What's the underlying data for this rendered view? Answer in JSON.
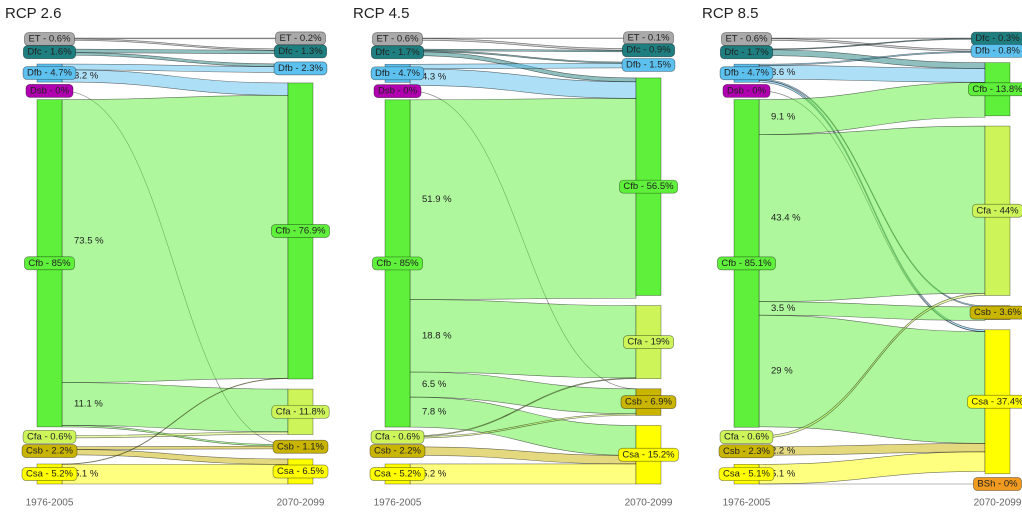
{
  "chart_data": [
    {
      "type": "sankey",
      "title": "RCP 2.6",
      "left_label": "1976-2005",
      "right_label": "2070-2099",
      "left_nodes": [
        {
          "label": "ET - 0.6%",
          "value": 0.6,
          "color": "#a9a9a9"
        },
        {
          "label": "Dfc - 1.6%",
          "value": 1.6,
          "color": "#1f7f80"
        },
        {
          "label": "Dfb - 4.7%",
          "value": 4.7,
          "color": "#5cc1ef"
        },
        {
          "label": "Dsb - 0%",
          "value": 0,
          "color": "#b000b0"
        },
        {
          "label": "Cfb - 85%",
          "value": 85,
          "color": "#5ef03a"
        },
        {
          "label": "Cfa - 0.6%",
          "value": 0.6,
          "color": "#cdf55a"
        },
        {
          "label": "Csb - 2.2%",
          "value": 2.2,
          "color": "#c9b400"
        },
        {
          "label": "Csa - 5.2%",
          "value": 5.2,
          "color": "#ffff00"
        }
      ],
      "right_nodes": [
        {
          "label": "ET - 0.2%",
          "value": 0.2,
          "color": "#a9a9a9"
        },
        {
          "label": "Dfc - 1.3%",
          "value": 1.3,
          "color": "#1f7f80"
        },
        {
          "label": "Dfb - 2.3%",
          "value": 2.3,
          "color": "#5cc1ef"
        },
        {
          "label": "Cfb - 76.9%",
          "value": 76.9,
          "color": "#5ef03a"
        },
        {
          "label": "Cfa - 11.8%",
          "value": 11.8,
          "color": "#cdf55a"
        },
        {
          "label": "Csb - 1.1%",
          "value": 1.1,
          "color": "#c9b400"
        },
        {
          "label": "Csa - 6.5%",
          "value": 6.5,
          "color": "#ffff00"
        }
      ],
      "links": [
        {
          "source": 0,
          "target": 0,
          "value": 0.2
        },
        {
          "source": 0,
          "target": 1,
          "value": 0.4
        },
        {
          "source": 1,
          "target": 1,
          "value": 0.9
        },
        {
          "source": 1,
          "target": 2,
          "value": 0.7
        },
        {
          "source": 2,
          "target": 2,
          "value": 1.5
        },
        {
          "source": 2,
          "target": 3,
          "value": 3.2,
          "label": "3.2 %"
        },
        {
          "source": 3,
          "target": 5,
          "value": 0
        },
        {
          "source": 4,
          "target": 3,
          "value": 73.5,
          "label": "73.5 %"
        },
        {
          "source": 4,
          "target": 4,
          "value": 11.1,
          "label": "11.1 %"
        },
        {
          "source": 4,
          "target": 5,
          "value": 0.4
        },
        {
          "source": 5,
          "target": 4,
          "value": 0.6
        },
        {
          "source": 6,
          "target": 5,
          "value": 0.7
        },
        {
          "source": 6,
          "target": 6,
          "value": 1.4
        },
        {
          "source": 7,
          "target": 3,
          "value": 0.1
        },
        {
          "source": 7,
          "target": 6,
          "value": 5.1,
          "label": "5.1 %"
        }
      ]
    },
    {
      "type": "sankey",
      "title": "RCP 4.5",
      "left_label": "1976-2005",
      "right_label": "2070-2099",
      "left_nodes": [
        {
          "label": "ET - 0.6%",
          "value": 0.6,
          "color": "#a9a9a9"
        },
        {
          "label": "Dfc - 1.7%",
          "value": 1.7,
          "color": "#1f7f80"
        },
        {
          "label": "Dfb - 4.7%",
          "value": 4.7,
          "color": "#5cc1ef"
        },
        {
          "label": "Dsb - 0%",
          "value": 0,
          "color": "#b000b0"
        },
        {
          "label": "Cfb - 85%",
          "value": 85,
          "color": "#5ef03a"
        },
        {
          "label": "Cfa - 0.6%",
          "value": 0.6,
          "color": "#cdf55a"
        },
        {
          "label": "Csb - 2.2%",
          "value": 2.2,
          "color": "#c9b400"
        },
        {
          "label": "Csa - 5.2%",
          "value": 5.2,
          "color": "#ffff00"
        }
      ],
      "right_nodes": [
        {
          "label": "ET - 0.1%",
          "value": 0.1,
          "color": "#a9a9a9"
        },
        {
          "label": "Dfc - 0.9%",
          "value": 0.9,
          "color": "#1f7f80"
        },
        {
          "label": "Dfb - 1.5%",
          "value": 1.5,
          "color": "#5cc1ef"
        },
        {
          "label": "Cfb - 56.5%",
          "value": 56.5,
          "color": "#5ef03a"
        },
        {
          "label": "Cfa - 19%",
          "value": 19,
          "color": "#cdf55a"
        },
        {
          "label": "Csb - 6.9%",
          "value": 6.9,
          "color": "#c9b400"
        },
        {
          "label": "Csa - 15.2%",
          "value": 15.2,
          "color": "#ffff00"
        }
      ],
      "links": [
        {
          "source": 0,
          "target": 0,
          "value": 0.1
        },
        {
          "source": 0,
          "target": 1,
          "value": 0.5
        },
        {
          "source": 1,
          "target": 1,
          "value": 0.4
        },
        {
          "source": 1,
          "target": 2,
          "value": 0.3
        },
        {
          "source": 1,
          "target": 3,
          "value": 1.0
        },
        {
          "source": 2,
          "target": 2,
          "value": 1.2
        },
        {
          "source": 2,
          "target": 3,
          "value": 4.3,
          "label": "4.3 %"
        },
        {
          "source": 3,
          "target": 5,
          "value": 0
        },
        {
          "source": 4,
          "target": 3,
          "value": 51.9,
          "label": "51.9 %"
        },
        {
          "source": 4,
          "target": 4,
          "value": 18.8,
          "label": "18.8 %"
        },
        {
          "source": 4,
          "target": 5,
          "value": 6.5,
          "label": "6.5 %"
        },
        {
          "source": 4,
          "target": 6,
          "value": 7.8,
          "label": "7.8 %"
        },
        {
          "source": 5,
          "target": 4,
          "value": 0.2
        },
        {
          "source": 5,
          "target": 5,
          "value": 0.4
        },
        {
          "source": 6,
          "target": 6,
          "value": 2.2
        },
        {
          "source": 7,
          "target": 6,
          "value": 5.2,
          "label": "5.2 %"
        }
      ]
    },
    {
      "type": "sankey",
      "title": "RCP 8.5",
      "left_label": "1976-2005",
      "right_label": "2070-2099",
      "left_nodes": [
        {
          "label": "ET - 0.6%",
          "value": 0.6,
          "color": "#a9a9a9"
        },
        {
          "label": "Dfc - 1.7%",
          "value": 1.7,
          "color": "#1f7f80"
        },
        {
          "label": "Dfb - 4.7%",
          "value": 4.7,
          "color": "#5cc1ef"
        },
        {
          "label": "Dsb - 0%",
          "value": 0,
          "color": "#b000b0"
        },
        {
          "label": "Cfb - 85.1%",
          "value": 85.1,
          "color": "#5ef03a"
        },
        {
          "label": "Cfa - 0.6%",
          "value": 0.6,
          "color": "#cdf55a"
        },
        {
          "label": "Csb - 2.3%",
          "value": 2.3,
          "color": "#c9b400"
        },
        {
          "label": "Csa - 5.1%",
          "value": 5.1,
          "color": "#ffff00"
        }
      ],
      "right_nodes": [
        {
          "label": "Dfc - 0.3%",
          "value": 0.3,
          "color": "#1f7f80"
        },
        {
          "label": "Dfb - 0.8%",
          "value": 0.8,
          "color": "#5cc1ef"
        },
        {
          "label": "Cfb - 13.8%",
          "value": 13.8,
          "color": "#5ef03a"
        },
        {
          "label": "Cfa - 44%",
          "value": 44,
          "color": "#cdf55a"
        },
        {
          "label": "Csb - 3.6%",
          "value": 3.6,
          "color": "#c9b400"
        },
        {
          "label": "Csa - 37.4%",
          "value": 37.4,
          "color": "#ffff00"
        },
        {
          "label": "BSh - 0%",
          "value": 0,
          "color": "#f09a20"
        }
      ],
      "links": [
        {
          "source": 0,
          "target": 0,
          "value": 0.1
        },
        {
          "source": 0,
          "target": 1,
          "value": 0.5
        },
        {
          "source": 1,
          "target": 0,
          "value": 0.2
        },
        {
          "source": 1,
          "target": 2,
          "value": 1.5
        },
        {
          "source": 2,
          "target": 1,
          "value": 0.3
        },
        {
          "source": 2,
          "target": 2,
          "value": 3.6,
          "label": "3.6 %"
        },
        {
          "source": 2,
          "target": 4,
          "value": 0.3
        },
        {
          "source": 2,
          "target": 5,
          "value": 0.5
        },
        {
          "source": 3,
          "target": 5,
          "value": 0
        },
        {
          "source": 4,
          "target": 2,
          "value": 9.1,
          "label": "9.1 %"
        },
        {
          "source": 4,
          "target": 3,
          "value": 43.4,
          "label": "43.4 %"
        },
        {
          "source": 4,
          "target": 4,
          "value": 3.5,
          "label": "3.5 %"
        },
        {
          "source": 4,
          "target": 5,
          "value": 29,
          "label": "29 %"
        },
        {
          "source": 5,
          "target": 3,
          "value": 0.6
        },
        {
          "source": 6,
          "target": 5,
          "value": 2.2,
          "label": "2.2 %"
        },
        {
          "source": 7,
          "target": 5,
          "value": 5.1,
          "label": "5.1 %"
        },
        {
          "source": 7,
          "target": 6,
          "value": 0
        }
      ]
    }
  ]
}
